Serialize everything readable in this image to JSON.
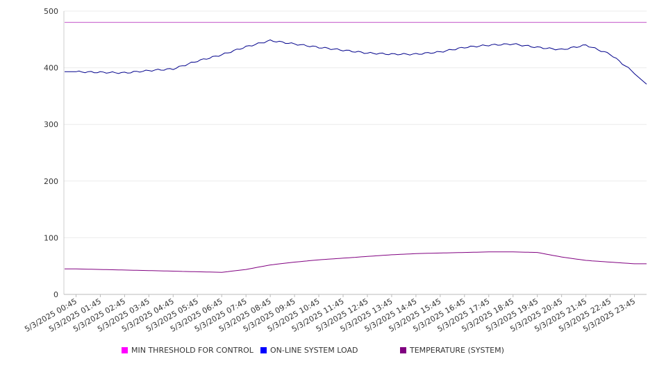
{
  "chart_data": {
    "type": "line",
    "ylim": [
      0,
      500
    ],
    "y_ticks": [
      0,
      100,
      200,
      300,
      400,
      500
    ],
    "grid": true,
    "legend_position": "bottom",
    "x": [
      "5/3/2025 00:45",
      "5/3/2025 01:45",
      "5/3/2025 02:45",
      "5/3/2025 03:45",
      "5/3/2025 04:45",
      "5/3/2025 05:45",
      "5/3/2025 06:45",
      "5/3/2025 07:45",
      "5/3/2025 08:45",
      "5/3/2025 09:45",
      "5/3/2025 10:45",
      "5/3/2025 11:45",
      "5/3/2025 12:45",
      "5/3/2025 13:45",
      "5/3/2025 14:45",
      "5/3/2025 15:45",
      "5/3/2025 16:45",
      "5/3/2025 17:45",
      "5/3/2025 18:45",
      "5/3/2025 19:45",
      "5/3/2025 20:45",
      "5/3/2025 21:45",
      "5/3/2025 22:45",
      "5/3/2025 23:45"
    ],
    "series": [
      {
        "name": "MIN THRESHOLD FOR CONTROL",
        "color": "#ff00ff",
        "line_color": "#c050c8",
        "values": [
          480,
          480,
          480,
          480,
          480,
          480,
          480,
          480,
          480,
          480,
          480,
          480,
          480,
          480,
          480,
          480,
          480,
          480,
          480,
          480,
          480,
          480,
          480,
          480
        ]
      },
      {
        "name": "ON-LINE SYSTEM LOAD",
        "color": "#0000ff",
        "line_color": "#00008b",
        "values": [
          393,
          392,
          391,
          395,
          398,
          412,
          423,
          437,
          448,
          442,
          436,
          431,
          426,
          424,
          424,
          428,
          436,
          440,
          442,
          436,
          432,
          440,
          424,
          391
        ]
      },
      {
        "name": "TEMPERATURE (SYSTEM)",
        "color": "#800080",
        "line_color": "#800080",
        "values": [
          45,
          44,
          43,
          42,
          41,
          40,
          39,
          44,
          52,
          57,
          61,
          64,
          67,
          70,
          72,
          73,
          74,
          75,
          75,
          74,
          66,
          60,
          57,
          54
        ]
      }
    ]
  }
}
